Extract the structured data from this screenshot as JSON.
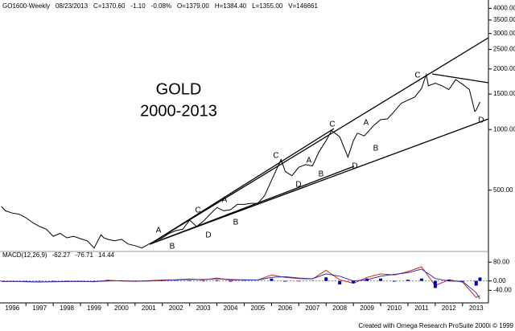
{
  "chart_data": [
    {
      "type": "line",
      "header": [
        {
          "text": "GO1600-Weekly",
          "color": "#000000"
        },
        {
          "text": "08/23/2013",
          "color": "#000000"
        },
        {
          "text": "C=1370.60",
          "color": "#c00000"
        },
        {
          "text": "-1.10",
          "color": "#c00000"
        },
        {
          "text": "-0.08%",
          "color": "#c00000"
        },
        {
          "text": "O=1379.00",
          "color": "#009000"
        },
        {
          "text": "H=1384.40",
          "color": "#000000"
        },
        {
          "text": "L=1355.00",
          "color": "#000000"
        },
        {
          "text": "V=146661",
          "color": "#000000"
        }
      ],
      "annotations": [
        "GOLD",
        "2000-2013"
      ],
      "wave_labels": [
        "A",
        "B",
        "C",
        "D",
        "A",
        "B",
        "C",
        "D",
        "A",
        "B",
        "C",
        "D",
        "A",
        "B",
        "C",
        "D"
      ],
      "log_y": true,
      "xlim": [
        1996.05,
        2013.95
      ],
      "xticks": [
        1996,
        1997,
        1998,
        1999,
        2000,
        2001,
        2002,
        2003,
        2004,
        2005,
        2006,
        2007,
        2008,
        2009,
        2010,
        2011,
        2012,
        2013
      ],
      "ylim": [
        255,
        4400
      ],
      "yticks": [
        {
          "value": 4000,
          "label": "4000.00"
        },
        {
          "value": 3500,
          "label": "3500.00"
        },
        {
          "value": 3000,
          "label": "3000.00"
        },
        {
          "value": 2500,
          "label": "2500.00"
        },
        {
          "value": 2000,
          "label": "2000.00"
        },
        {
          "value": 1500,
          "label": "1500.00"
        },
        {
          "value": 1000,
          "label": "1000.00"
        },
        {
          "value": 500,
          "label": "500.00"
        }
      ],
      "x": [
        1996.1,
        1996.25,
        1996.5,
        1996.75,
        1997.0,
        1997.25,
        1997.5,
        1997.75,
        1998.0,
        1998.25,
        1998.5,
        1998.75,
        1999.0,
        1999.25,
        1999.5,
        1999.75,
        1999.85,
        2000.0,
        2000.25,
        2000.5,
        2000.75,
        2001.0,
        2001.25,
        2001.5,
        2001.75,
        2002.0,
        2002.25,
        2002.5,
        2002.75,
        2003.0,
        2003.25,
        2003.5,
        2003.75,
        2004.0,
        2004.25,
        2004.5,
        2004.75,
        2005.0,
        2005.25,
        2005.5,
        2005.75,
        2006.0,
        2006.35,
        2006.5,
        2006.75,
        2007.0,
        2007.25,
        2007.5,
        2007.75,
        2008.0,
        2008.2,
        2008.5,
        2008.8,
        2009.0,
        2009.15,
        2009.4,
        2009.75,
        2010.0,
        2010.25,
        2010.5,
        2010.75,
        2011.0,
        2011.25,
        2011.5,
        2011.67,
        2011.75,
        2012.0,
        2012.25,
        2012.5,
        2012.75,
        2013.0,
        2013.25,
        2013.45,
        2013.5,
        2013.64
      ],
      "series": [
        {
          "color": "#000000",
          "values": [
            415,
            395,
            385,
            380,
            365,
            345,
            330,
            320,
            295,
            305,
            290,
            295,
            287,
            280,
            258,
            300,
            290,
            285,
            280,
            285,
            270,
            265,
            258,
            270,
            280,
            290,
            305,
            315,
            320,
            355,
            330,
            350,
            380,
            410,
            395,
            400,
            425,
            425,
            430,
            430,
            470,
            560,
            710,
            620,
            590,
            650,
            670,
            660,
            780,
            880,
            990,
            920,
            730,
            880,
            960,
            930,
            1050,
            1120,
            1130,
            1230,
            1350,
            1400,
            1450,
            1600,
            1880,
            1650,
            1700,
            1650,
            1580,
            1770,
            1680,
            1580,
            1230,
            1250,
            1370.6
          ]
        }
      ]
    },
    {
      "type": "macd",
      "title": "MACD(12,26,9)",
      "ylim": [
        -90,
        115
      ],
      "yticks": [
        {
          "value": 80,
          "label": "80.00"
        },
        {
          "value": 0,
          "label": "0.00"
        },
        {
          "value": -40,
          "label": "-40.00"
        }
      ],
      "x": [
        1996.1,
        1996.5,
        1997.0,
        1997.5,
        1998.0,
        1998.5,
        1999.0,
        1999.5,
        2000.0,
        2000.5,
        2001.0,
        2001.5,
        2002.0,
        2002.5,
        2003.0,
        2003.5,
        2004.0,
        2004.5,
        2005.0,
        2005.5,
        2006.0,
        2006.5,
        2007.0,
        2007.5,
        2008.0,
        2008.5,
        2009.0,
        2009.5,
        2010.0,
        2010.5,
        2011.0,
        2011.5,
        2012.0,
        2012.5,
        2013.0,
        2013.5,
        2013.64
      ],
      "series": [
        {
          "kind": "line",
          "color": "#d02020",
          "values": [
            -3,
            -2,
            -4,
            -5,
            -3,
            -2,
            -2,
            -4,
            3,
            0,
            -2,
            1,
            4,
            5,
            8,
            4,
            12,
            3,
            5,
            4,
            25,
            15,
            10,
            8,
            45,
            5,
            -10,
            15,
            30,
            25,
            40,
            60,
            -20,
            5,
            -5,
            -70,
            -62.27
          ]
        },
        {
          "kind": "line",
          "color": "#3030b0",
          "values": [
            -2,
            -2,
            -3,
            -4,
            -4,
            -3,
            -2,
            -3,
            0,
            1,
            -1,
            0,
            2,
            4,
            6,
            6,
            9,
            6,
            4,
            4,
            15,
            18,
            12,
            9,
            30,
            20,
            0,
            5,
            20,
            28,
            35,
            50,
            10,
            0,
            -2,
            -50,
            -76.71
          ]
        },
        {
          "kind": "bar",
          "color": "#0000c8",
          "values": [
            -1,
            0,
            -1,
            -1,
            1,
            1,
            0,
            -1,
            3,
            -1,
            -1,
            1,
            2,
            1,
            2,
            -2,
            3,
            -3,
            1,
            0,
            10,
            -3,
            -2,
            -1,
            15,
            -15,
            -10,
            10,
            10,
            -3,
            5,
            10,
            -30,
            5,
            -3,
            -20,
            14.44
          ]
        }
      ]
    }
  ],
  "footer": "Created with Omega Research ProSuite 2000i © 1999"
}
